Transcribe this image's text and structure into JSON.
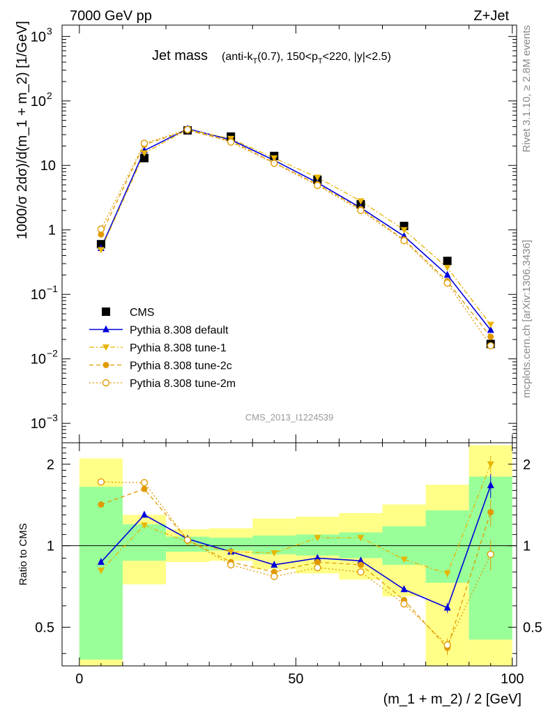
{
  "header": {
    "left_label": "7000 GeV pp",
    "right_label": "Z+Jet"
  },
  "side_labels": {
    "rivet": "Rivet 3.1.10, ≥ 2.8M events",
    "mcplots": "mcplots.cern.ch [arXiv:1306.3436]"
  },
  "chart_data": [
    {
      "type": "line",
      "title": {
        "main": "Jet mass",
        "sub_parts": [
          "(anti-k",
          "T",
          "(0.7), 150<p",
          "T",
          "<220, |y|<2.5)"
        ]
      },
      "watermark": "CMS_2013_I1224539",
      "ylabel": "1000/σ 2dσ)/d(m_1 + m_2) [1/GeV]",
      "yscale": "log",
      "ylim": [
        0.0005,
        1500
      ],
      "xlim": [
        -4,
        101
      ],
      "yticks": [
        {
          "base": "10",
          "exp": "3",
          "value": 1000
        },
        {
          "base": "10",
          "exp": "2",
          "value": 100
        },
        {
          "base": "10",
          "exp": "",
          "value": 10
        },
        {
          "base": "1",
          "exp": "",
          "value": 1
        },
        {
          "base": "10",
          "exp": "−1",
          "value": 0.1
        },
        {
          "base": "10",
          "exp": "−2",
          "value": 0.01
        },
        {
          "base": "10",
          "exp": "−3",
          "value": 0.001
        }
      ],
      "legend_position": "lower-left",
      "x": [
        5,
        15,
        25,
        35,
        45,
        55,
        65,
        75,
        85,
        95
      ],
      "series": [
        {
          "name": "CMS",
          "marker": "square",
          "line": "none",
          "color": "#000000",
          "values": [
            0.6,
            13,
            35,
            28,
            14,
            6,
            2.5,
            1.15,
            0.33,
            0.017
          ]
        },
        {
          "name": "Pythia 8.308 default",
          "marker": "triangle-up",
          "line": "solid",
          "color": "#0000dd",
          "values": [
            0.52,
            17,
            37,
            25,
            12,
            5.4,
            2.2,
            0.8,
            0.2,
            0.028
          ]
        },
        {
          "name": "Pythia 8.308 tune-1",
          "marker": "triangle-down",
          "line": "dashdot",
          "color": "#e8b400",
          "values": [
            0.49,
            15.5,
            36,
            26,
            13,
            6.5,
            2.8,
            1.0,
            0.26,
            0.034
          ]
        },
        {
          "name": "Pythia 8.308 tune-2c",
          "marker": "circle",
          "line": "dashed",
          "color": "#e09a00",
          "values": [
            0.85,
            21,
            35,
            24,
            11,
            5.1,
            2.1,
            0.71,
            0.16,
            0.022
          ]
        },
        {
          "name": "Pythia 8.308 tune-2m",
          "marker": "open-circle",
          "line": "dotted",
          "color": "#e09a00",
          "values": [
            1.03,
            22,
            36,
            23,
            10.8,
            4.9,
            2.0,
            0.68,
            0.15,
            0.016
          ]
        }
      ]
    },
    {
      "type": "line",
      "ylabel": "Ratio to CMS",
      "xlabel": "(m_1 + m_2) / 2 [GeV]",
      "yscale": "log",
      "ylim": [
        0.36,
        2.4
      ],
      "xlim": [
        -4,
        101
      ],
      "yticks": [
        0.5,
        1,
        2
      ],
      "ytick_labels": [
        "0.5",
        "1",
        "2"
      ],
      "xticks": [
        0,
        50,
        100
      ],
      "xtick_labels": [
        "0",
        "50",
        "100"
      ],
      "reference_line": 1,
      "bands": {
        "bin_edges": [
          0,
          10,
          20,
          30,
          40,
          50,
          60,
          70,
          80,
          90,
          100
        ],
        "inner": {
          "color": "#99ff99",
          "low": [
            0.38,
            0.88,
            0.95,
            0.96,
            0.93,
            0.92,
            0.9,
            0.85,
            0.73,
            0.45
          ],
          "high": [
            1.65,
            1.2,
            1.08,
            1.07,
            1.09,
            1.1,
            1.12,
            1.18,
            1.35,
            1.8
          ]
        },
        "outer": {
          "color": "#ffff88",
          "low": [
            0.36,
            0.72,
            0.87,
            0.88,
            0.82,
            0.79,
            0.75,
            0.65,
            0.36,
            0.36
          ],
          "high": [
            2.1,
            1.3,
            1.15,
            1.16,
            1.26,
            1.28,
            1.32,
            1.42,
            1.68,
            2.35
          ]
        }
      },
      "series": [
        {
          "name": "Pythia 8.308 default",
          "values": [
            0.87,
            1.3,
            1.06,
            0.95,
            0.85,
            0.9,
            0.88,
            0.69,
            0.59,
            1.67
          ],
          "err": [
            0.02,
            0.01,
            0.01,
            0.01,
            0.01,
            0.01,
            0.01,
            0.015,
            0.025,
            0.17
          ]
        },
        {
          "name": "Pythia 8.308 tune-1",
          "values": [
            0.81,
            1.19,
            1.03,
            0.95,
            0.94,
            1.07,
            1.07,
            0.89,
            0.79,
            2.0
          ],
          "err": [
            0.02,
            0.01,
            0.01,
            0.01,
            0.01,
            0.01,
            0.01,
            0.015,
            0.03,
            0.15
          ]
        },
        {
          "name": "Pythia 8.308 tune-2c",
          "values": [
            1.42,
            1.62,
            1.05,
            0.87,
            0.8,
            0.87,
            0.85,
            0.63,
            0.42,
            1.33
          ],
          "err": [
            0.02,
            0.01,
            0.01,
            0.01,
            0.01,
            0.01,
            0.01,
            0.015,
            0.025,
            0.15
          ]
        },
        {
          "name": "Pythia 8.308 tune-2m",
          "values": [
            1.72,
            1.71,
            1.05,
            0.85,
            0.77,
            0.83,
            0.8,
            0.61,
            0.43,
            0.93
          ],
          "err": [
            0.02,
            0.01,
            0.01,
            0.01,
            0.01,
            0.01,
            0.01,
            0.015,
            0.025,
            0.12
          ]
        }
      ]
    }
  ]
}
